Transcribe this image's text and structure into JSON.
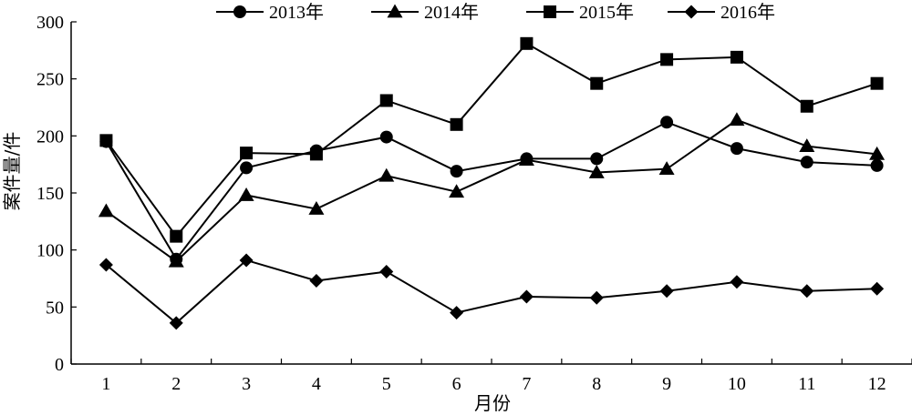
{
  "chart_data": {
    "type": "line",
    "title": "",
    "xlabel": "月份",
    "ylabel": "案件量/件",
    "categories": [
      "1",
      "2",
      "3",
      "4",
      "5",
      "6",
      "7",
      "8",
      "9",
      "10",
      "11",
      "12"
    ],
    "ylim": [
      0,
      300
    ],
    "yticks": [
      0,
      50,
      100,
      150,
      200,
      250,
      300
    ],
    "grid": false,
    "legend_position": "top",
    "series": [
      {
        "name": "2013年",
        "marker": "circle",
        "values": [
          195,
          92,
          172,
          187,
          199,
          169,
          180,
          180,
          212,
          189,
          177,
          174
        ]
      },
      {
        "name": "2014年",
        "marker": "triangle",
        "values": [
          134,
          90,
          148,
          136,
          165,
          151,
          179,
          168,
          171,
          214,
          191,
          184
        ]
      },
      {
        "name": "2015年",
        "marker": "square",
        "values": [
          196,
          112,
          185,
          184,
          231,
          210,
          281,
          246,
          267,
          269,
          226,
          246
        ]
      },
      {
        "name": "2016年",
        "marker": "diamond",
        "values": [
          87,
          36,
          91,
          73,
          81,
          45,
          59,
          58,
          64,
          72,
          64,
          66
        ]
      }
    ]
  }
}
